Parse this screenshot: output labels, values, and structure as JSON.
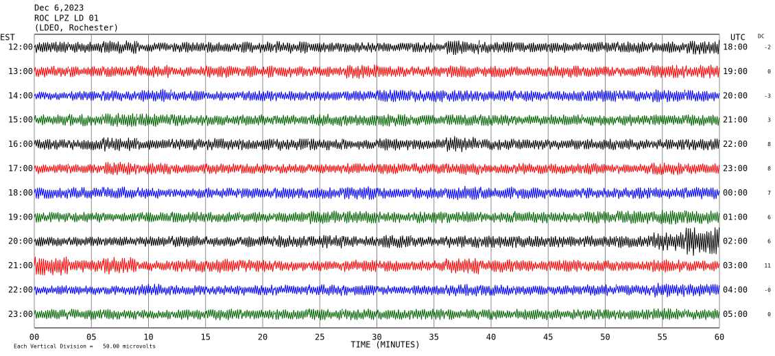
{
  "chart_data": {
    "type": "helicorder",
    "title": "Dec 6,2023",
    "subtitle": [
      "ROC LPZ LD 01",
      "(LDEO, Rochester)"
    ],
    "left_axis_label": "EST",
    "right_axis_label": "UTC",
    "dc_label": "DC",
    "x_label": "TIME (MINUTES)",
    "note": "Each Vertical Division =   50.00 microvolts",
    "xlim": [
      0,
      60
    ],
    "xticks": [
      {
        "value": 0,
        "label": "00"
      },
      {
        "value": 5,
        "label": "05"
      },
      10,
      15,
      20,
      25,
      30,
      35,
      40,
      45,
      50,
      55,
      60
    ],
    "grid": true,
    "traces": [
      {
        "est": "12:00",
        "utc": "18:00",
        "dc": "-2",
        "color": "#000000",
        "values": [
          12,
          12,
          14,
          10,
          11,
          11,
          12,
          13,
          10,
          11,
          10,
          11,
          16,
          12,
          11,
          12,
          11,
          12,
          12,
          15
        ]
      },
      {
        "est": "13:00",
        "utc": "19:00",
        "dc": "0",
        "color": "#ff0000",
        "values": [
          12,
          12,
          11,
          14,
          11,
          13,
          13,
          12,
          11,
          15,
          12,
          11,
          13,
          12,
          11,
          13,
          11,
          11,
          14,
          14
        ]
      },
      {
        "est": "14:00",
        "utc": "20:00",
        "dc": "-3",
        "color": "#0000ff",
        "values": [
          9,
          10,
          11,
          15,
          11,
          10,
          11,
          11,
          10,
          11,
          13,
          13,
          12,
          12,
          12,
          11,
          13,
          12,
          14,
          12
        ]
      },
      {
        "est": "15:00",
        "utc": "21:00",
        "dc": "3",
        "color": "#006400",
        "values": [
          12,
          13,
          15,
          14,
          12,
          12,
          12,
          11,
          13,
          12,
          13,
          11,
          12,
          12,
          11,
          12,
          12,
          12,
          12,
          12
        ]
      },
      {
        "est": "16:00",
        "utc": "22:00",
        "dc": "8",
        "color": "#000000",
        "values": [
          11,
          12,
          15,
          11,
          12,
          13,
          12,
          13,
          12,
          11,
          13,
          11,
          17,
          12,
          11,
          11,
          12,
          12,
          11,
          12
        ]
      },
      {
        "est": "17:00",
        "utc": "23:00",
        "dc": "8",
        "color": "#ff0000",
        "values": [
          11,
          10,
          14,
          12,
          10,
          11,
          11,
          10,
          10,
          12,
          11,
          12,
          13,
          10,
          12,
          11,
          12,
          11,
          13,
          11
        ]
      },
      {
        "est": "18:00",
        "utc": "00:00",
        "dc": "7",
        "color": "#0000ff",
        "values": [
          12,
          13,
          13,
          12,
          11,
          11,
          11,
          12,
          12,
          14,
          12,
          12,
          15,
          13,
          12,
          11,
          11,
          12,
          12,
          13
        ]
      },
      {
        "est": "19:00",
        "utc": "01:00",
        "dc": "6",
        "color": "#006400",
        "values": [
          11,
          11,
          10,
          11,
          12,
          12,
          11,
          12,
          14,
          13,
          12,
          13,
          12,
          11,
          13,
          11,
          13,
          14,
          15,
          14
        ]
      },
      {
        "est": "20:00",
        "utc": "02:00",
        "dc": "6",
        "color": "#000000",
        "values": [
          10,
          10,
          10,
          11,
          12,
          11,
          12,
          13,
          14,
          12,
          14,
          11,
          13,
          13,
          13,
          12,
          13,
          13,
          20,
          30
        ]
      },
      {
        "est": "21:00",
        "utc": "03:00",
        "dc": "11",
        "color": "#ff0000",
        "values": [
          20,
          14,
          18,
          11,
          14,
          15,
          13,
          11,
          11,
          13,
          12,
          12,
          18,
          14,
          12,
          13,
          12,
          11,
          14,
          11
        ]
      },
      {
        "est": "22:00",
        "utc": "04:00",
        "dc": "-0",
        "color": "#0000ff",
        "values": [
          10,
          10,
          10,
          13,
          11,
          10,
          11,
          11,
          12,
          11,
          10,
          11,
          13,
          12,
          11,
          11,
          12,
          11,
          15,
          13
        ]
      },
      {
        "est": "23:00",
        "utc": "05:00",
        "dc": "0",
        "color": "#006400",
        "values": [
          11,
          12,
          11,
          10,
          11,
          12,
          10,
          11,
          12,
          12,
          11,
          12,
          11,
          11,
          12,
          11,
          11,
          11,
          13,
          12
        ]
      }
    ]
  }
}
